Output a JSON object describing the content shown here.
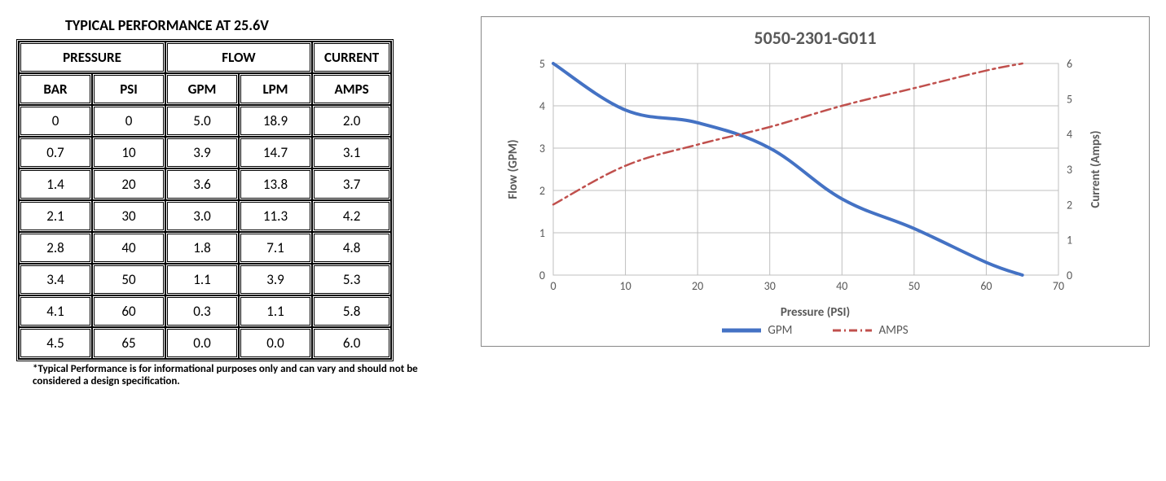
{
  "table": {
    "title": "TYPICAL PERFORMANCE AT 25.6V",
    "group_headers": [
      "PRESSURE",
      "FLOW",
      "CURRENT"
    ],
    "sub_headers": [
      "BAR",
      "PSI",
      "GPM",
      "LPM",
      "AMPS"
    ],
    "rows": [
      [
        "0",
        "0",
        "5.0",
        "18.9",
        "2.0"
      ],
      [
        "0.7",
        "10",
        "3.9",
        "14.7",
        "3.1"
      ],
      [
        "1.4",
        "20",
        "3.6",
        "13.8",
        "3.7"
      ],
      [
        "2.1",
        "30",
        "3.0",
        "11.3",
        "4.2"
      ],
      [
        "2.8",
        "40",
        "1.8",
        "7.1",
        "4.8"
      ],
      [
        "3.4",
        "50",
        "1.1",
        "3.9",
        "5.3"
      ],
      [
        "4.1",
        "60",
        "0.3",
        "1.1",
        "5.8"
      ],
      [
        "4.5",
        "65",
        "0.0",
        "0.0",
        "6.0"
      ]
    ],
    "footnote": "*Typical Performance is for informational purposes only and can vary and should not be considered a design specification."
  },
  "chart": {
    "type": "line-dual-axis",
    "title": "5050-2301-G011",
    "xlabel": "Pressure (PSI)",
    "ylabel_left": "Flow (GPM)",
    "ylabel_right": "Current (Amps)",
    "xlim": [
      0,
      70
    ],
    "xtick_step": 10,
    "ylim_left": [
      0,
      5
    ],
    "ytick_step_left": 1,
    "ylim_right": [
      0,
      6
    ],
    "ytick_step_right": 1,
    "background_color": "#ffffff",
    "plot_border_color": "#bfbfbf",
    "grid_color": "#bfbfbf",
    "axis_text_color": "#595959",
    "axis_fontsize": 14,
    "label_fontsize": 15,
    "title_fontsize": 22,
    "series": [
      {
        "name": "GPM",
        "axis": "left",
        "color": "#4472c4",
        "line_width": 4,
        "style": "solid",
        "marker": "none",
        "x": [
          0,
          10,
          20,
          30,
          40,
          50,
          60,
          65
        ],
        "y": [
          5.0,
          3.9,
          3.6,
          3.0,
          1.8,
          1.1,
          0.3,
          0.0
        ]
      },
      {
        "name": "AMPS",
        "axis": "right",
        "color": "#c0504d",
        "line_width": 2.5,
        "style": "dash-dot",
        "marker": "none",
        "x": [
          0,
          10,
          20,
          30,
          40,
          50,
          60,
          65
        ],
        "y": [
          2.0,
          3.1,
          3.7,
          4.2,
          4.8,
          5.3,
          5.8,
          6.0
        ]
      }
    ],
    "legend": {
      "items": [
        "GPM",
        "AMPS"
      ],
      "position": "bottom"
    }
  }
}
